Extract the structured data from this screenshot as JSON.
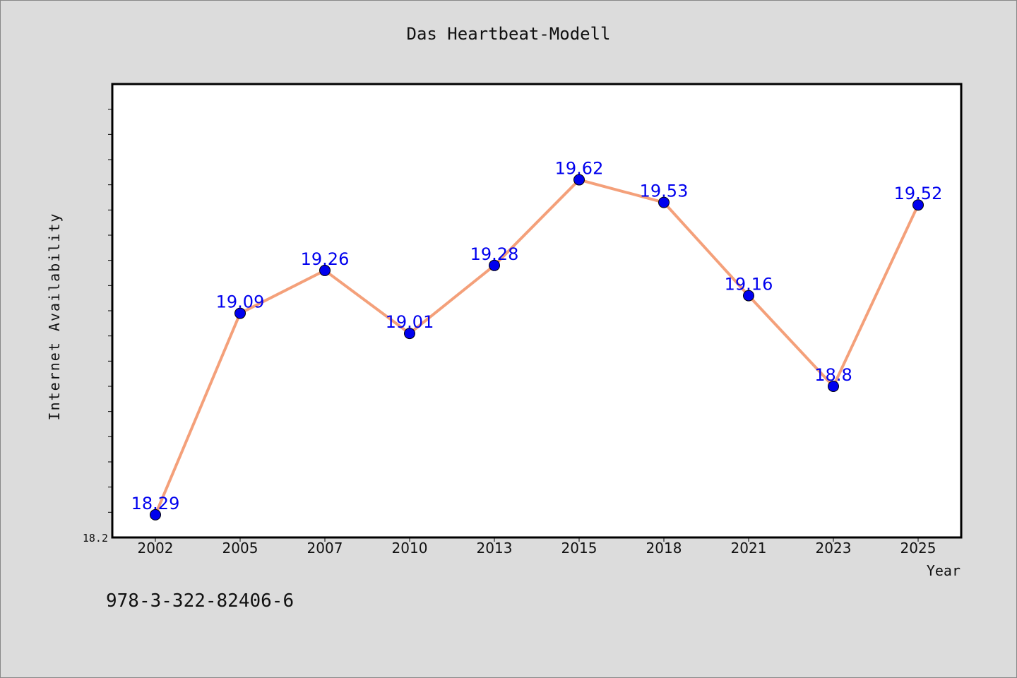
{
  "title": "Das Heartbeat-Modell",
  "footnote": "978-3-322-82406-6",
  "colors": {
    "background": "#dcdcdc",
    "plot_background": "#ffffff",
    "line": "#f4a07a",
    "marker": "#0000ee",
    "label": "#0000ee"
  },
  "chart_data": {
    "type": "line",
    "title": "Das Heartbeat-Modell",
    "xlabel": "Year",
    "ylabel": "Internet Availability",
    "categories": [
      "2002",
      "2005",
      "2007",
      "2010",
      "2013",
      "2015",
      "2018",
      "2021",
      "2023",
      "2025"
    ],
    "series": [
      {
        "values": [
          18.29,
          19.09,
          19.26,
          19.01,
          19.28,
          19.62,
          19.53,
          19.16,
          18.8,
          19.52
        ],
        "labels": [
          "18.29",
          "19.09",
          "19.26",
          "19.01",
          "19.28",
          "19.62",
          "19.53",
          "19.16",
          "18.8",
          "19.52"
        ]
      }
    ],
    "ylim": [
      18.2,
      20.0
    ],
    "y_tick_labels": [
      "18.2"
    ],
    "grid": false,
    "legend": "none"
  }
}
